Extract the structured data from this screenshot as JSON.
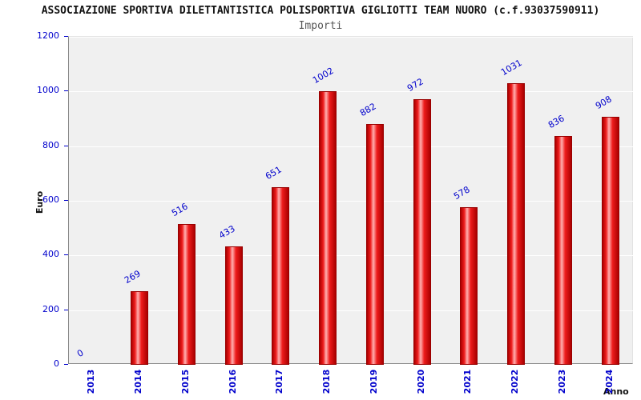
{
  "header": {
    "title": "ASSOCIAZIONE SPORTIVA DILETTANTISTICA POLISPORTIVA GIGLIOTTI TEAM NUORO (c.f.93037590911)",
    "subtitle": "Importi"
  },
  "chart_data": {
    "type": "bar",
    "title": "ASSOCIAZIONE SPORTIVA DILETTANTISTICA POLISPORTIVA GIGLIOTTI TEAM NUORO (c.f.93037590911)",
    "subtitle": "Importi",
    "categories": [
      "2013",
      "2014",
      "2015",
      "2016",
      "2017",
      "2018",
      "2019",
      "2020",
      "2021",
      "2022",
      "2023",
      "2024"
    ],
    "values": [
      0,
      269,
      516,
      433,
      651,
      1002,
      882,
      972,
      578,
      1031,
      836,
      908
    ],
    "xlabel": "Anno",
    "ylabel": "Euro",
    "ylim": [
      0,
      1200
    ],
    "yticks": [
      0,
      200,
      400,
      600,
      800,
      1000,
      1200
    ],
    "grid": true,
    "legend": "none",
    "colors": {
      "bar_fill": "#ee1c1c",
      "bar_border": "#990000",
      "bar_highlight": "#ffb0b0",
      "value_label": "#0000cc",
      "tick_label": "#0000cc",
      "plot_background": "#f0f0f0",
      "gridline": "#ffffff"
    }
  }
}
